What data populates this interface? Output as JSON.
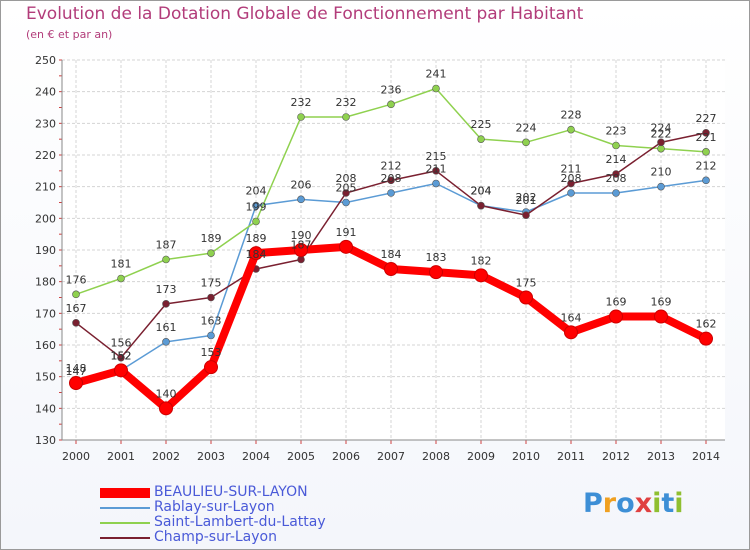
{
  "header": {
    "title": "Evolution de la Dotation Globale de Fonctionnement par Habitant",
    "subtitle": "(en € et par an)"
  },
  "chart_data": {
    "type": "line",
    "title": "Evolution de la Dotation Globale de Fonctionnement par Habitant",
    "subtitle": "(en € et par an)",
    "xlabel": "",
    "ylabel": "",
    "ylim": [
      130,
      250
    ],
    "yticks": [
      130,
      140,
      150,
      160,
      170,
      180,
      190,
      200,
      210,
      220,
      230,
      240,
      250
    ],
    "grid": true,
    "x": [
      "2000",
      "2001",
      "2002",
      "2003",
      "2004",
      "2005",
      "2006",
      "2007",
      "2008",
      "2009",
      "2010",
      "2011",
      "2012",
      "2013",
      "2014"
    ],
    "series": [
      {
        "name": "BEAULIEU-SUR-LAYON",
        "color": "#ff0000",
        "values": [
          148,
          152,
          140,
          153,
          189,
          190,
          191,
          184,
          183,
          182,
          175,
          164,
          169,
          169,
          162
        ]
      },
      {
        "name": "Rablay-sur-Layon",
        "color": "#5b9bd5",
        "values": [
          147,
          152,
          161,
          163,
          204,
          206,
          205,
          208,
          211,
          204,
          202,
          208,
          208,
          210,
          212
        ]
      },
      {
        "name": "Saint-Lambert-du-Lattay",
        "color": "#8fd14f",
        "values": [
          176,
          181,
          187,
          189,
          199,
          232,
          232,
          236,
          241,
          225,
          224,
          228,
          223,
          222,
          221
        ]
      },
      {
        "name": "Champ-sur-Layon",
        "color": "#7a2030",
        "values": [
          167,
          156,
          173,
          175,
          184,
          187,
          208,
          212,
          215,
          204,
          201,
          211,
          214,
          224,
          227
        ]
      }
    ]
  },
  "legend": {
    "items": [
      {
        "label": "BEAULIEU-SUR-LAYON",
        "color": "#ff0000"
      },
      {
        "label": "Rablay-sur-Layon",
        "color": "#5b9bd5"
      },
      {
        "label": "Saint-Lambert-du-Lattay",
        "color": "#8fd14f"
      },
      {
        "label": "Champ-sur-Layon",
        "color": "#7a2030"
      }
    ],
    "label_color": "#4a5ad8"
  },
  "logo": {
    "text": "Proxiti",
    "letters": [
      "P",
      "r",
      "o",
      "x",
      "i",
      "t",
      "i"
    ],
    "colors": [
      "#3d8fd6",
      "#f0a020",
      "#3d8fd6",
      "#e04040",
      "#8fbf30",
      "#3d8fd6",
      "#8fbf30"
    ]
  }
}
